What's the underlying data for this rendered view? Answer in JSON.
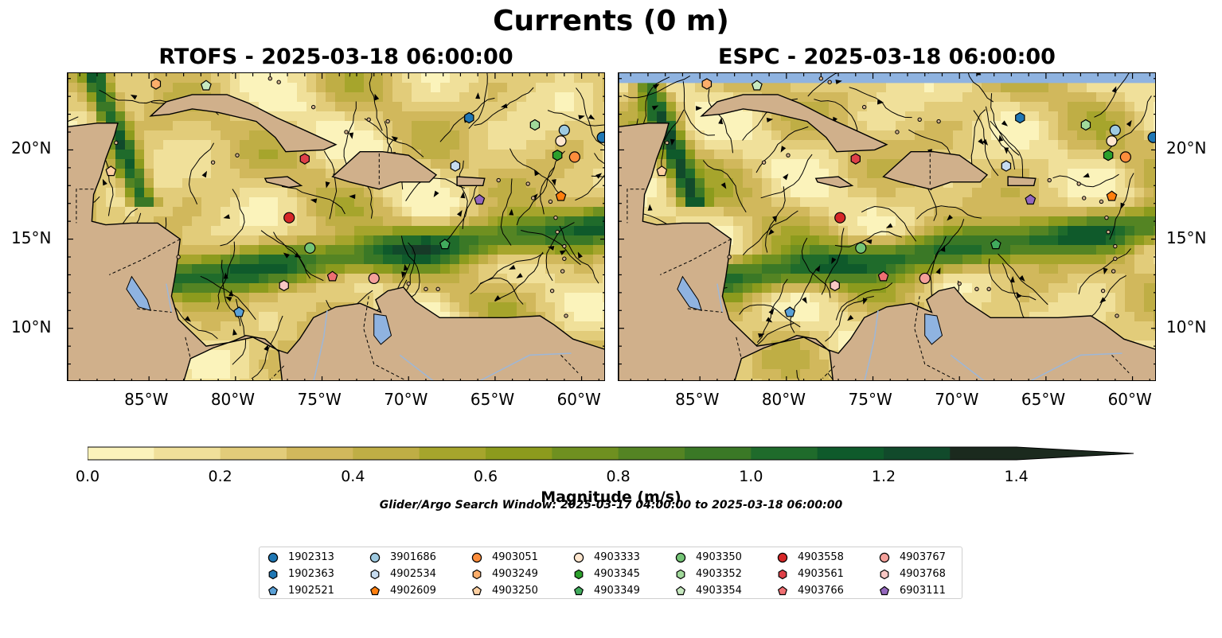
{
  "figure": {
    "title": "Currents (0 m)",
    "panels": [
      {
        "title": "RTOFS - 2025-03-18 06:00:00"
      },
      {
        "title": "ESPC - 2025-03-18 06:00:00"
      }
    ],
    "x_ticks": [
      "85°W",
      "80°W",
      "75°W",
      "70°W",
      "65°W",
      "60°W"
    ],
    "y_ticks": [
      "20°N",
      "15°N",
      "10°N"
    ]
  },
  "colorbar": {
    "label": "Magnitude (m/s)",
    "ticks": [
      "0.0",
      "0.2",
      "0.4",
      "0.6",
      "0.8",
      "1.0",
      "1.2",
      "1.4"
    ],
    "range": [
      0.0,
      1.5
    ],
    "step": 0.1,
    "extend": "max",
    "colors": [
      "#fbf3bb",
      "#f0e09a",
      "#e2cc7a",
      "#d1b85c",
      "#bfae45",
      "#a6a52c",
      "#8c9b1d",
      "#6f9020",
      "#548423",
      "#3a7826",
      "#1f6b2b",
      "#0f5a2b",
      "#114a2b",
      "#173a27",
      "#1b2a1e"
    ]
  },
  "search_window": "Glider/Argo Search Window: 2025-03-17 04:00:00 to 2025-03-18 06:00:00",
  "legend": {
    "columns": [
      [
        {
          "label": "1902313",
          "marker": "circle",
          "color": "#1f77b4"
        },
        {
          "label": "1902363",
          "marker": "hexagon",
          "color": "#1f77b4"
        },
        {
          "label": "1902521",
          "marker": "pentagon",
          "color": "#5aa0d6"
        }
      ],
      [
        {
          "label": "3901686",
          "marker": "circle",
          "color": "#9ecae1"
        },
        {
          "label": "4902534",
          "marker": "hexagon",
          "color": "#c6dbef"
        },
        {
          "label": "4902609",
          "marker": "pentagon",
          "color": "#ff7f0e"
        }
      ],
      [
        {
          "label": "4903051",
          "marker": "circle",
          "color": "#fd8d3c"
        },
        {
          "label": "4903249",
          "marker": "hexagon",
          "color": "#fdae6b"
        },
        {
          "label": "4903250",
          "marker": "pentagon",
          "color": "#fdd0a2"
        }
      ],
      [
        {
          "label": "4903333",
          "marker": "circle",
          "color": "#fee6ce"
        },
        {
          "label": "4903345",
          "marker": "hexagon",
          "color": "#2ca02c"
        },
        {
          "label": "4903349",
          "marker": "pentagon",
          "color": "#41ab5d"
        }
      ],
      [
        {
          "label": "4903350",
          "marker": "circle",
          "color": "#74c476"
        },
        {
          "label": "4903352",
          "marker": "hexagon",
          "color": "#a1d99b"
        },
        {
          "label": "4903354",
          "marker": "pentagon",
          "color": "#c7e9c0"
        }
      ],
      [
        {
          "label": "4903558",
          "marker": "circle",
          "color": "#d62728"
        },
        {
          "label": "4903561",
          "marker": "hexagon",
          "color": "#de4048"
        },
        {
          "label": "4903766",
          "marker": "pentagon",
          "color": "#ef6f72"
        }
      ],
      [
        {
          "label": "4903767",
          "marker": "circle",
          "color": "#f4a09a"
        },
        {
          "label": "4903768",
          "marker": "hexagon",
          "color": "#f9c7c4"
        },
        {
          "label": "6903111",
          "marker": "pentagon",
          "color": "#9467bd"
        }
      ]
    ]
  },
  "map": {
    "lon_range": [
      -89.7,
      -58.6
    ],
    "lat_range": [
      7.0,
      24.3
    ],
    "land_color": "#d0b08b",
    "water_color": "#8fb3e0",
    "floats": [
      {
        "id": "1902313",
        "lon": -58.8,
        "lat": 20.7
      },
      {
        "id": "1902363",
        "lon": -66.5,
        "lat": 21.8
      },
      {
        "id": "1902521",
        "lon": -79.8,
        "lat": 10.9
      },
      {
        "id": "3901686",
        "lon": -61.0,
        "lat": 21.1
      },
      {
        "id": "4902534",
        "lon": -67.3,
        "lat": 19.1
      },
      {
        "id": "4902609",
        "lon": -61.2,
        "lat": 17.4
      },
      {
        "id": "4903051",
        "lon": -60.4,
        "lat": 19.6
      },
      {
        "id": "4903249",
        "lon": -84.6,
        "lat": 23.7
      },
      {
        "id": "4903250",
        "lon": -87.2,
        "lat": 18.8
      },
      {
        "id": "4903333",
        "lon": -61.2,
        "lat": 20.5
      },
      {
        "id": "4903345",
        "lon": -61.4,
        "lat": 19.7
      },
      {
        "id": "4903349",
        "lon": -67.9,
        "lat": 14.7
      },
      {
        "id": "4903350",
        "lon": -75.7,
        "lat": 14.5
      },
      {
        "id": "4903352",
        "lon": -62.7,
        "lat": 21.4
      },
      {
        "id": "4903354",
        "lon": -81.7,
        "lat": 23.6
      },
      {
        "id": "4903558",
        "lon": -76.9,
        "lat": 16.2
      },
      {
        "id": "4903561",
        "lon": -76.0,
        "lat": 19.5
      },
      {
        "id": "4903766",
        "lon": -74.4,
        "lat": 12.9
      },
      {
        "id": "4903767",
        "lon": -72.0,
        "lat": 12.8
      },
      {
        "id": "4903768",
        "lon": -77.2,
        "lat": 12.4
      },
      {
        "id": "6903111",
        "lon": -65.9,
        "lat": 17.2
      }
    ]
  }
}
